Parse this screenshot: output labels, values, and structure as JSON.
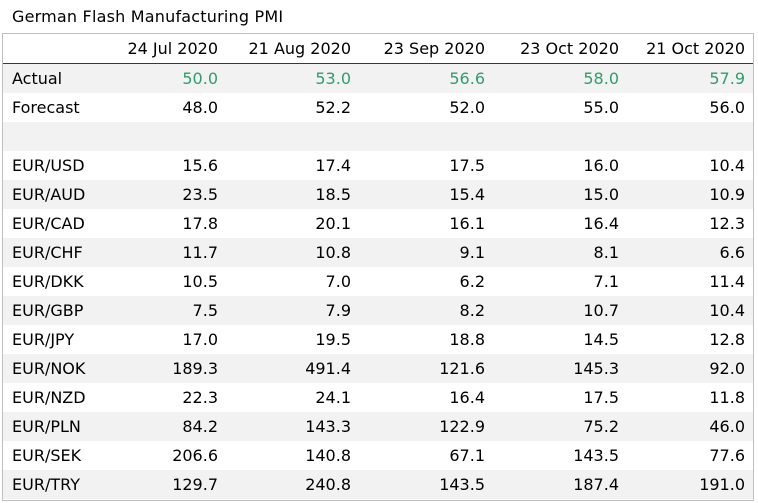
{
  "title": "German Flash Manufacturing PMI",
  "columns": [
    "",
    "24 Jul 2020",
    "21 Aug 2020",
    "23 Sep 2020",
    "23 Oct 2020",
    "21 Oct 2020"
  ],
  "actual": {
    "label": "Actual",
    "values": [
      "50.0",
      "53.0",
      "56.6",
      "58.0",
      "57.9"
    ],
    "color": "#2e9e6b"
  },
  "forecast": {
    "label": "Forecast",
    "values": [
      "48.0",
      "52.2",
      "52.0",
      "55.0",
      "56.0"
    ]
  },
  "pairs": [
    {
      "label": "EUR/USD",
      "values": [
        "15.6",
        "17.4",
        "17.5",
        "16.0",
        "10.4"
      ]
    },
    {
      "label": "EUR/AUD",
      "values": [
        "23.5",
        "18.5",
        "15.4",
        "15.0",
        "10.9"
      ]
    },
    {
      "label": "EUR/CAD",
      "values": [
        "17.8",
        "20.1",
        "16.1",
        "16.4",
        "12.3"
      ]
    },
    {
      "label": "EUR/CHF",
      "values": [
        "11.7",
        "10.8",
        "9.1",
        "8.1",
        "6.6"
      ]
    },
    {
      "label": "EUR/DKK",
      "values": [
        "10.5",
        "7.0",
        "6.2",
        "7.1",
        "11.4"
      ]
    },
    {
      "label": "EUR/GBP",
      "values": [
        "7.5",
        "7.9",
        "8.2",
        "10.7",
        "10.4"
      ]
    },
    {
      "label": "EUR/JPY",
      "values": [
        "17.0",
        "19.5",
        "18.8",
        "14.5",
        "12.8"
      ]
    },
    {
      "label": "EUR/NOK",
      "values": [
        "189.3",
        "491.4",
        "121.6",
        "145.3",
        "92.0"
      ]
    },
    {
      "label": "EUR/NZD",
      "values": [
        "22.3",
        "24.1",
        "16.4",
        "17.5",
        "11.8"
      ]
    },
    {
      "label": "EUR/PLN",
      "values": [
        "84.2",
        "143.3",
        "122.9",
        "75.2",
        "46.0"
      ]
    },
    {
      "label": "EUR/SEK",
      "values": [
        "206.6",
        "140.8",
        "67.1",
        "143.5",
        "77.6"
      ]
    },
    {
      "label": "EUR/TRY",
      "values": [
        "129.7",
        "240.8",
        "143.5",
        "187.4",
        "191.0"
      ]
    }
  ]
}
